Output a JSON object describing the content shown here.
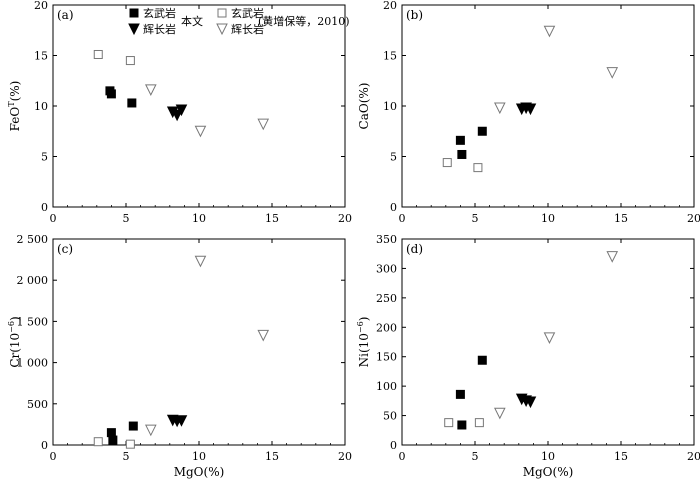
{
  "legend": {
    "this_study": "本文",
    "reference": "(黄增保等，2010)",
    "basalt": "玄武岩",
    "gabbro": "辉长岩"
  },
  "chart_data": [
    {
      "type": "scatter",
      "panel": "(a)",
      "xlabel": "",
      "ylabel": "FeO",
      "ylabel_sup": "T",
      "ylabel_tail": "(%)",
      "xlim": [
        0,
        20
      ],
      "ylim": [
        0,
        20
      ],
      "xticks": [
        "0",
        "5",
        "10",
        "15",
        "20"
      ],
      "yticks": [
        "0",
        "5",
        "10",
        "15",
        "20"
      ],
      "legend_position": "top",
      "series": [
        {
          "name": "玄武岩",
          "marker": "filled-square",
          "group": "本文",
          "points": [
            [
              3.9,
              11.5
            ],
            [
              4.0,
              11.2
            ],
            [
              5.4,
              10.3
            ]
          ]
        },
        {
          "name": "辉长岩",
          "marker": "filled-triangle-down",
          "group": "本文",
          "points": [
            [
              8.2,
              9.4
            ],
            [
              8.5,
              9.1
            ],
            [
              8.8,
              9.6
            ]
          ]
        },
        {
          "name": "玄武岩",
          "marker": "open-square",
          "group": "(黄增保等，2010)",
          "points": [
            [
              3.1,
              15.1
            ],
            [
              5.3,
              14.5
            ]
          ]
        },
        {
          "name": "辉长岩",
          "marker": "open-triangle-down",
          "group": "(黄增保等，2010)",
          "points": [
            [
              6.7,
              11.6
            ],
            [
              10.1,
              7.5
            ],
            [
              14.4,
              8.2
            ]
          ]
        }
      ]
    },
    {
      "type": "scatter",
      "panel": "(b)",
      "xlabel": "",
      "ylabel": "CaO(%)",
      "xlim": [
        0,
        20
      ],
      "ylim": [
        0,
        20
      ],
      "xticks": [
        "0",
        "5",
        "10",
        "15",
        "20"
      ],
      "yticks": [
        "0",
        "5",
        "10",
        "15",
        "20"
      ],
      "series": [
        {
          "name": "玄武岩",
          "marker": "filled-square",
          "points": [
            [
              4.0,
              6.6
            ],
            [
              4.1,
              5.2
            ],
            [
              5.5,
              7.5
            ]
          ]
        },
        {
          "name": "辉长岩",
          "marker": "filled-triangle-down",
          "points": [
            [
              8.2,
              9.7
            ],
            [
              8.5,
              9.8
            ],
            [
              8.8,
              9.7
            ]
          ]
        },
        {
          "name": "玄武岩",
          "marker": "open-square",
          "points": [
            [
              3.1,
              4.4
            ],
            [
              5.2,
              3.9
            ]
          ]
        },
        {
          "name": "辉长岩",
          "marker": "open-triangle-down",
          "points": [
            [
              6.7,
              9.8
            ],
            [
              10.1,
              17.4
            ],
            [
              14.4,
              13.3
            ]
          ]
        }
      ]
    },
    {
      "type": "scatter",
      "panel": "(c)",
      "xlabel": "MgO(%)",
      "ylabel": "Cr(10",
      "ylabel_sup": "−6",
      "ylabel_tail": ")",
      "xlim": [
        0,
        20
      ],
      "ylim": [
        0,
        2500
      ],
      "xticks": [
        "0",
        "5",
        "10",
        "15",
        "20"
      ],
      "yticks": [
        "0",
        "500",
        "1 000",
        "1 500",
        "2 000",
        "2 500"
      ],
      "series": [
        {
          "name": "玄武岩",
          "marker": "filled-square",
          "points": [
            [
              4.0,
              150
            ],
            [
              4.1,
              60
            ],
            [
              5.5,
              230
            ]
          ]
        },
        {
          "name": "辉长岩",
          "marker": "filled-triangle-down",
          "points": [
            [
              8.2,
              300
            ],
            [
              8.5,
              290
            ],
            [
              8.8,
              295
            ]
          ]
        },
        {
          "name": "玄武岩",
          "marker": "open-square",
          "points": [
            [
              3.1,
              40
            ],
            [
              5.3,
              10
            ]
          ]
        },
        {
          "name": "辉长岩",
          "marker": "open-triangle-down",
          "points": [
            [
              6.7,
              180
            ],
            [
              10.1,
              2230
            ],
            [
              14.4,
              1330
            ]
          ]
        }
      ]
    },
    {
      "type": "scatter",
      "panel": "(d)",
      "xlabel": "MgO(%)",
      "ylabel": "Ni(10",
      "ylabel_sup": "−6",
      "ylabel_tail": ")",
      "xlim": [
        0,
        20
      ],
      "ylim": [
        0,
        350
      ],
      "xticks": [
        "0",
        "5",
        "10",
        "15",
        "20"
      ],
      "yticks": [
        "0",
        "50",
        "100",
        "150",
        "200",
        "250",
        "300",
        "350"
      ],
      "series": [
        {
          "name": "玄武岩",
          "marker": "filled-square",
          "points": [
            [
              4.0,
              86
            ],
            [
              4.1,
              34
            ],
            [
              5.5,
              144
            ]
          ]
        },
        {
          "name": "辉长岩",
          "marker": "filled-triangle-down",
          "points": [
            [
              8.2,
              78
            ],
            [
              8.5,
              75
            ],
            [
              8.8,
              73
            ]
          ]
        },
        {
          "name": "玄武岩",
          "marker": "open-square",
          "points": [
            [
              3.2,
              38
            ],
            [
              5.3,
              38
            ]
          ]
        },
        {
          "name": "辉长岩",
          "marker": "open-triangle-down",
          "points": [
            [
              6.7,
              54
            ],
            [
              10.1,
              182
            ],
            [
              14.4,
              320
            ]
          ]
        }
      ]
    }
  ]
}
